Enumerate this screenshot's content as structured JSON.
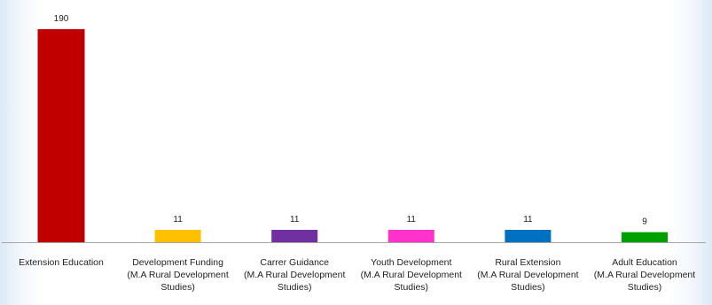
{
  "chart_data": {
    "type": "bar",
    "categories": [
      [
        "Extension Education"
      ],
      [
        "Development Funding",
        "(M.A Rural Development",
        "Studies)"
      ],
      [
        "Carrer Guidance",
        "(M.A Rural Development",
        "Studies)"
      ],
      [
        "Youth Development",
        "(M.A Rural Development",
        "Studies)"
      ],
      [
        "Rural Extension",
        "(M.A Rural Development",
        "Studies)"
      ],
      [
        "Adult Education",
        "(M.A Rural Development",
        "Studies)"
      ]
    ],
    "values": [
      190,
      11,
      11,
      11,
      11,
      9
    ],
    "colors": [
      "#c00000",
      "#ffc000",
      "#7030a0",
      "#ff33cc",
      "#0070c0",
      "#00a000"
    ],
    "ylim": [
      0,
      190
    ],
    "grid": false,
    "legend": "none",
    "title": "",
    "xlabel": "",
    "ylabel": ""
  }
}
